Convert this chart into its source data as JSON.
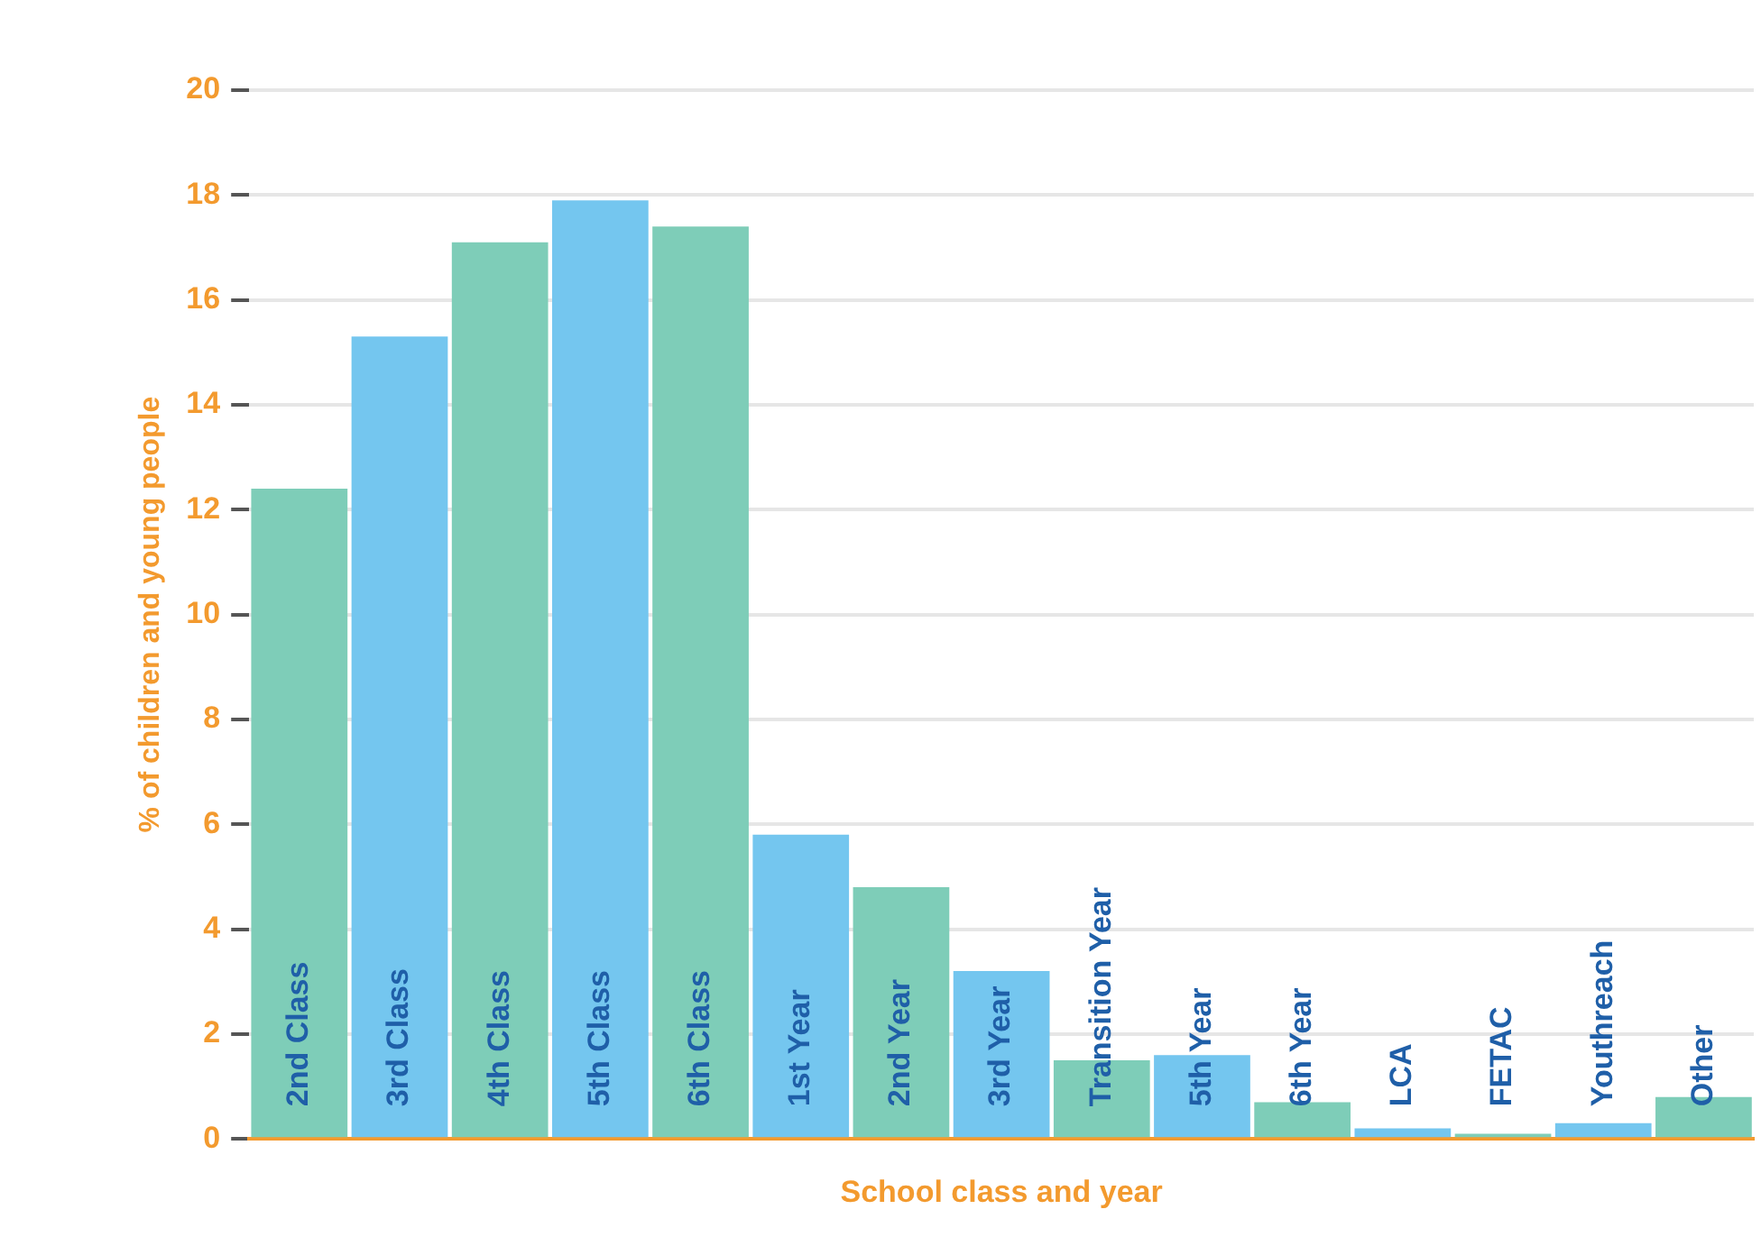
{
  "chart_data": {
    "type": "bar",
    "xlabel": "School class and year",
    "ylabel": "% of children and young people",
    "categories": [
      "2nd Class",
      "3rd Class",
      "4th Class",
      "5th Class",
      "6th Class",
      "1st Year",
      "2nd Year",
      "3rd Year",
      "Transition Year",
      "5th Year",
      "6th Year",
      "LCA",
      "FETAC",
      "Youthreach",
      "Other"
    ],
    "values": [
      12.4,
      15.3,
      17.1,
      17.9,
      17.4,
      5.8,
      4.8,
      3.2,
      1.5,
      1.6,
      0.7,
      0.2,
      0.1,
      0.3,
      0.8
    ],
    "colors": [
      "#7ecdb8",
      "#74c6ef",
      "#7ecdb8",
      "#74c6ef",
      "#7ecdb8",
      "#74c6ef",
      "#7ecdb8",
      "#74c6ef",
      "#7ecdb8",
      "#74c6ef",
      "#7ecdb8",
      "#74c6ef",
      "#7ecdb8",
      "#74c6ef",
      "#7ecdb8"
    ],
    "ylim": [
      0,
      20
    ],
    "yticks": [
      0,
      2,
      4,
      6,
      8,
      10,
      12,
      14,
      16,
      18,
      20
    ],
    "grid": "y",
    "legend": false
  }
}
